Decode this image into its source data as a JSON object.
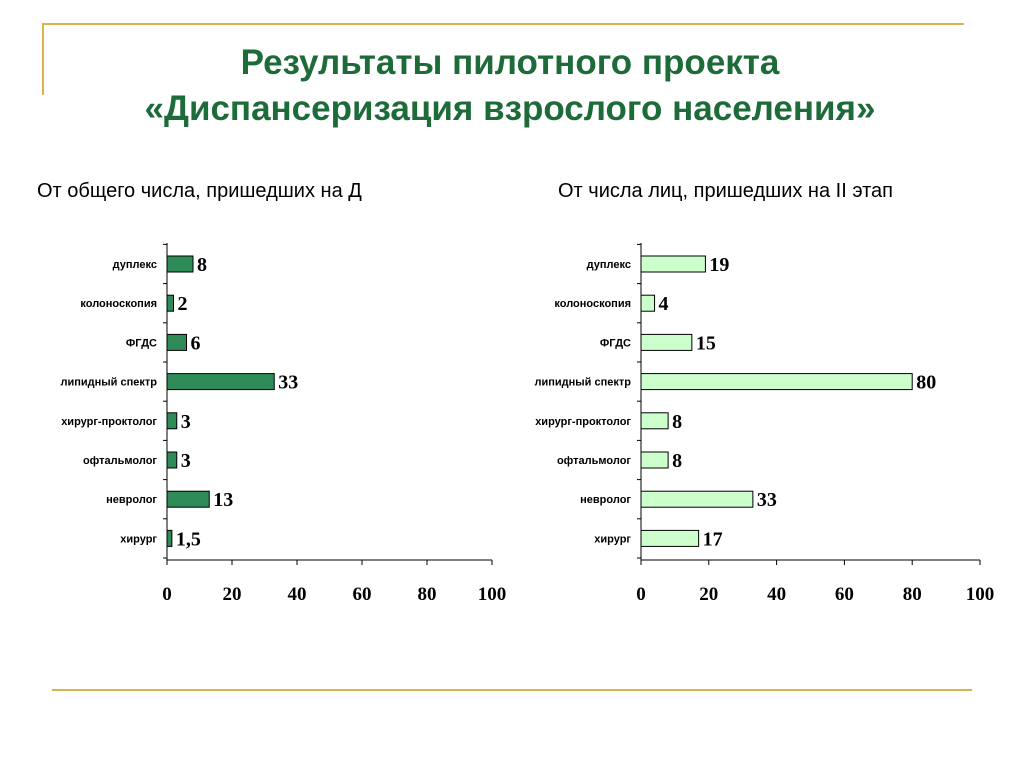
{
  "slide": {
    "title_line1": "Результаты пилотного проекта",
    "title_line2": "«Диспансеризация взрослого населения»"
  },
  "chart_data": [
    {
      "type": "bar",
      "orientation": "horizontal",
      "title": "От общего числа, пришедших на Д",
      "categories": [
        "дуплекс",
        "колоноскопия",
        "ФГДС",
        "липидный спектр",
        "хирург-проктолог",
        "офтальмолог",
        "невролог",
        "хирург"
      ],
      "values": [
        8,
        2,
        6,
        33,
        3,
        3,
        13,
        1.5
      ],
      "value_labels": [
        "8",
        "2",
        "6",
        "33",
        "3",
        "3",
        "13",
        "1,5"
      ],
      "xlim": [
        0,
        100
      ],
      "xticks": [
        "0",
        "20",
        "40",
        "60",
        "80",
        "100"
      ],
      "bar_color": "#2e8b57",
      "grid": false
    },
    {
      "type": "bar",
      "orientation": "horizontal",
      "title": "От числа лиц, пришедших на II этап",
      "categories": [
        "дуплекс",
        "колоноскопия",
        "ФГДС",
        "липидный спектр",
        "хирург-проктолог",
        "офтальмолог",
        "невролог",
        "хирург"
      ],
      "values": [
        19,
        4,
        15,
        80,
        8,
        8,
        33,
        17
      ],
      "value_labels": [
        "19",
        "4",
        "15",
        "80",
        "8",
        "8",
        "33",
        "17"
      ],
      "xlim": [
        0,
        100
      ],
      "xticks": [
        "0",
        "20",
        "40",
        "60",
        "80",
        "100"
      ],
      "bar_color": "#ccffcc",
      "grid": false
    }
  ],
  "colors": {
    "title": "#1e6b3a",
    "frame": "#d9b44a"
  }
}
